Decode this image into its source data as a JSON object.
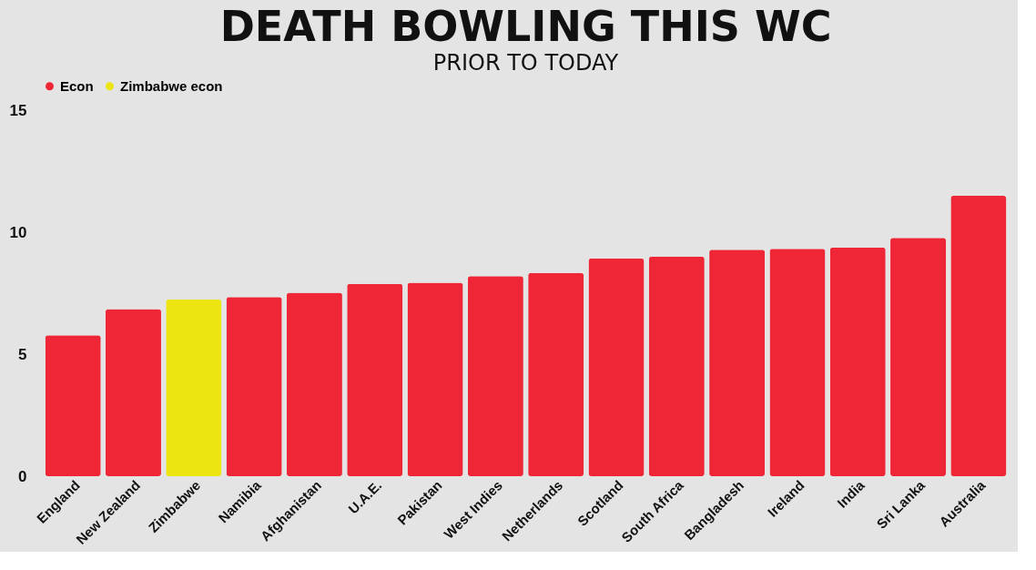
{
  "chart_data": {
    "type": "bar",
    "title": "DEATH BOWLING THIS WC",
    "subtitle": "PRIOR TO TODAY",
    "categories": [
      "England",
      "New Zealand",
      "Zimbabwe",
      "Namibia",
      "Afghanistan",
      "U.A.E.",
      "Pakistan",
      "West Indies",
      "Netherlands",
      "Scotland",
      "South Africa",
      "Bangladesh",
      "Ireland",
      "India",
      "Sri Lanka",
      "Australia"
    ],
    "stacked": true,
    "series": [
      {
        "name": "Econ",
        "color": "#ee2636",
        "values": [
          5.77,
          6.85,
          null,
          7.34,
          7.52,
          7.88,
          7.93,
          8.2,
          8.33,
          8.92,
          9.0,
          9.28,
          9.32,
          9.37,
          9.77,
          11.49
        ]
      },
      {
        "name": "Zimbabwe econ",
        "color": "#ede511",
        "values": [
          null,
          null,
          7.25,
          null,
          null,
          null,
          null,
          null,
          null,
          null,
          null,
          null,
          null,
          null,
          null,
          null
        ]
      }
    ],
    "ylim": [
      0,
      15
    ],
    "yticks": [
      0,
      5,
      10,
      15
    ],
    "grid": false,
    "legend": "top"
  }
}
